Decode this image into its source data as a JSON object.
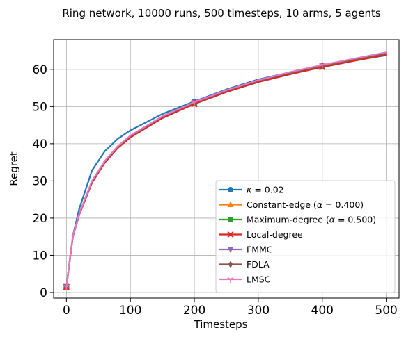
{
  "chart_data": {
    "type": "line",
    "title": "Ring network, 10000 runs, 500 timesteps, 10 arms, 5 agents",
    "xlabel": "Timesteps",
    "ylabel": "Regret",
    "xlim": [
      -20,
      520
    ],
    "ylim": [
      -1.5,
      68
    ],
    "xticks": [
      0,
      100,
      200,
      300,
      400,
      500
    ],
    "yticks": [
      0,
      10,
      20,
      30,
      40,
      50,
      60
    ],
    "xtick_labels": [
      "0",
      "100",
      "200",
      "300",
      "400",
      "500"
    ],
    "ytick_labels": [
      "0",
      "10",
      "20",
      "30",
      "40",
      "50",
      "60"
    ],
    "grid": true,
    "legend_position": "lower-right",
    "marker_x": [
      0,
      200,
      400
    ],
    "series": [
      {
        "name_pre": "",
        "name_greek": "κ",
        "name_post": " = 0.02",
        "color": "#1f77b4",
        "marker": "circle",
        "x": [
          0,
          10,
          20,
          40,
          60,
          80,
          100,
          150,
          200,
          250,
          300,
          350,
          400,
          450,
          500
        ],
        "y": [
          1.5,
          15.2,
          22.5,
          32.8,
          38.0,
          41.3,
          43.6,
          48.0,
          51.4,
          54.6,
          57.3,
          59.2,
          60.9,
          62.4,
          63.8
        ]
      },
      {
        "name_pre": "Constant-edge (",
        "name_greek": "α",
        "name_post": " = 0.400)",
        "color": "#ff7f0e",
        "marker": "triangle-up",
        "x": [
          0,
          10,
          20,
          40,
          60,
          80,
          100,
          150,
          200,
          250,
          300,
          350,
          400,
          450,
          500
        ],
        "y": [
          1.5,
          15.0,
          21.0,
          29.6,
          35.0,
          38.9,
          41.8,
          47.0,
          50.8,
          54.0,
          56.7,
          58.8,
          60.7,
          62.4,
          64.0
        ]
      },
      {
        "name_pre": "Maximum-degree (",
        "name_greek": "α",
        "name_post": " = 0.500)",
        "color": "#2ca02c",
        "marker": "square",
        "x": [
          0,
          10,
          20,
          40,
          60,
          80,
          100,
          150,
          200,
          250,
          300,
          350,
          400,
          450,
          500
        ],
        "y": [
          1.5,
          15.0,
          21.0,
          29.6,
          35.0,
          38.9,
          41.8,
          47.0,
          50.8,
          54.0,
          56.7,
          58.8,
          60.7,
          62.4,
          64.0
        ]
      },
      {
        "name_pre": "Local-degree",
        "name_greek": "",
        "name_post": "",
        "color": "#d62728",
        "marker": "x",
        "x": [
          0,
          10,
          20,
          40,
          60,
          80,
          100,
          150,
          200,
          250,
          300,
          350,
          400,
          450,
          500
        ],
        "y": [
          1.5,
          14.9,
          20.9,
          29.5,
          34.9,
          38.8,
          41.7,
          46.9,
          50.7,
          53.9,
          56.6,
          58.7,
          60.6,
          62.3,
          63.9
        ]
      },
      {
        "name_pre": "FMMC",
        "name_greek": "",
        "name_post": "",
        "color": "#9467bd",
        "marker": "triangle-down",
        "x": [
          0,
          10,
          20,
          40,
          60,
          80,
          100,
          150,
          200,
          250,
          300,
          350,
          400,
          450,
          500
        ],
        "y": [
          1.5,
          15.1,
          21.2,
          29.9,
          35.3,
          39.2,
          42.1,
          47.3,
          51.1,
          54.3,
          57.0,
          59.2,
          61.1,
          62.8,
          64.4
        ]
      },
      {
        "name_pre": "FDLA",
        "name_greek": "",
        "name_post": "",
        "color": "#8c564b",
        "marker": "diamond",
        "x": [
          0,
          10,
          20,
          40,
          60,
          80,
          100,
          150,
          200,
          250,
          300,
          350,
          400,
          450,
          500
        ],
        "y": [
          1.5,
          15.1,
          21.2,
          29.9,
          35.3,
          39.2,
          42.1,
          47.3,
          51.1,
          54.3,
          57.0,
          59.2,
          61.1,
          62.8,
          64.4
        ]
      },
      {
        "name_pre": "LMSC",
        "name_greek": "",
        "name_post": "",
        "color": "#e377c2",
        "marker": "tri-down",
        "x": [
          0,
          10,
          20,
          40,
          60,
          80,
          100,
          150,
          200,
          250,
          300,
          350,
          400,
          450,
          500
        ],
        "y": [
          1.5,
          15.1,
          21.2,
          30.0,
          35.4,
          39.3,
          42.2,
          47.4,
          51.2,
          54.4,
          57.1,
          59.3,
          61.2,
          62.9,
          64.6
        ]
      }
    ]
  }
}
